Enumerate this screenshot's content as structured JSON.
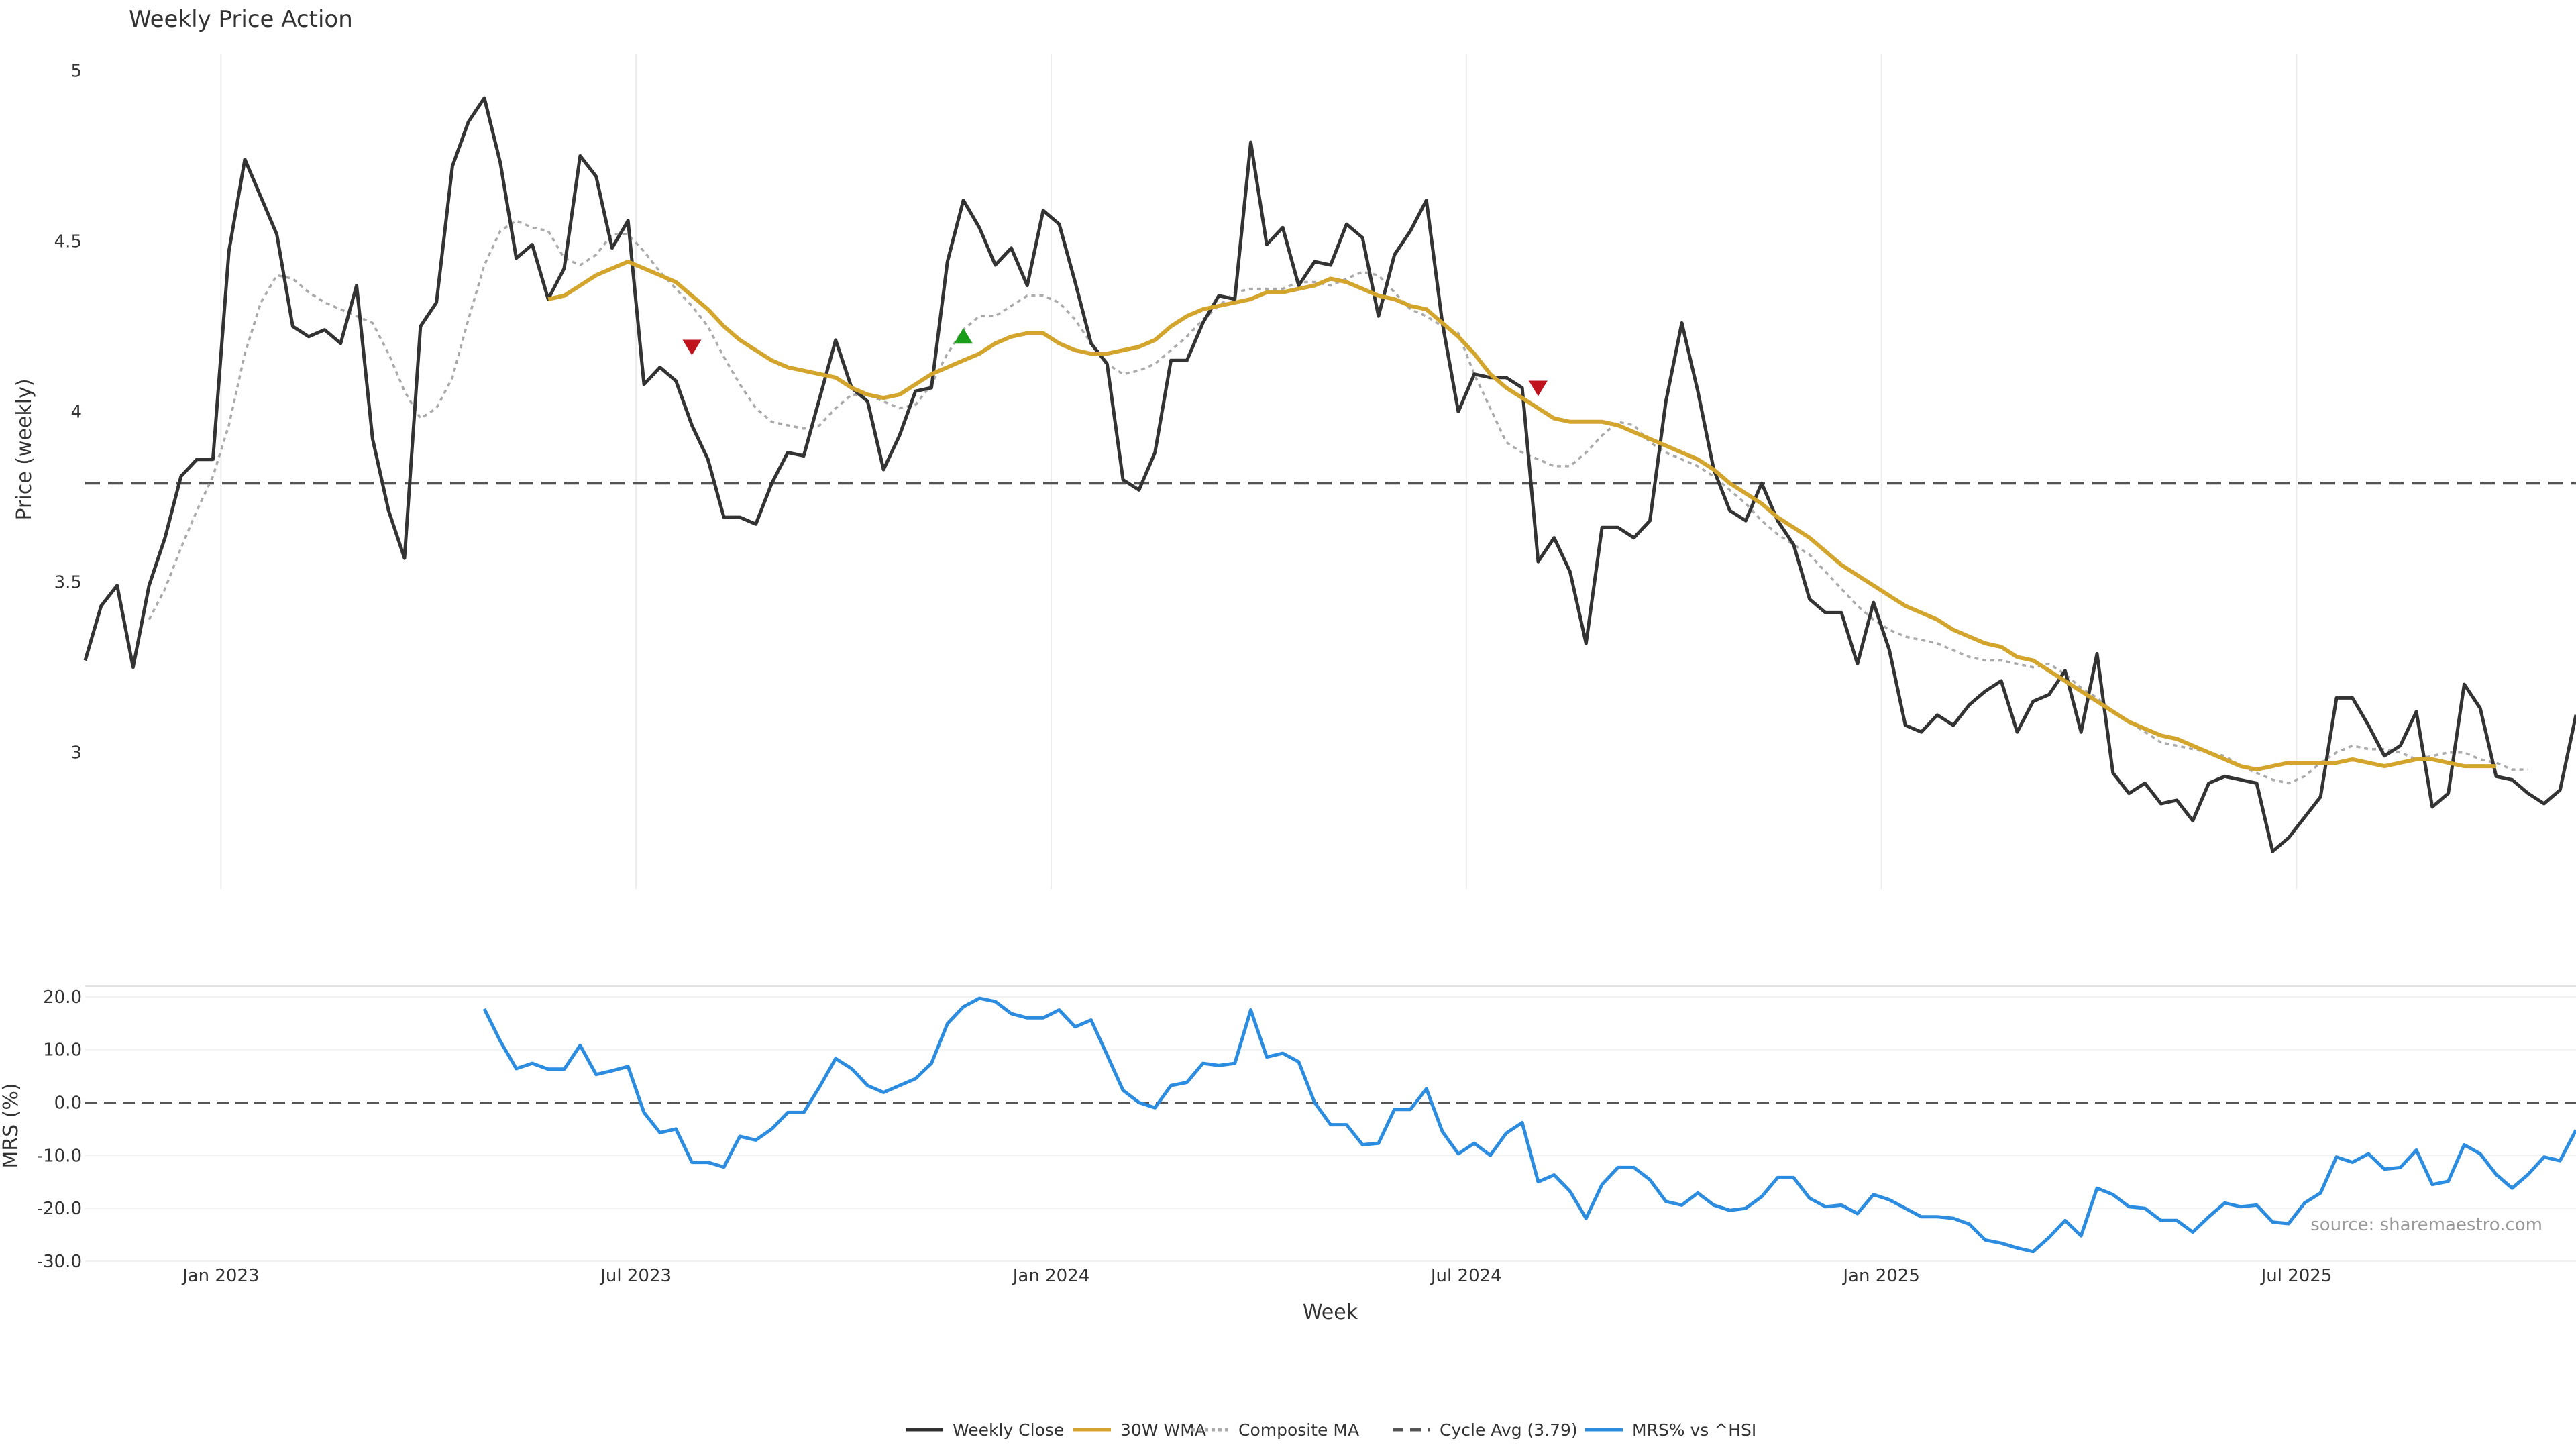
{
  "chart_data": {
    "title": "Weekly Price Action",
    "source": "source: sharemaestro.com",
    "xlabel": "Week",
    "x_ticks": [
      "Jan 2023",
      "Jul 2023",
      "Jan 2024",
      "Jul 2024",
      "Jan 2025",
      "Jul 2025"
    ],
    "price_panel": {
      "type": "line",
      "ylabel": "Price (weekly)",
      "ylim": [
        2.6,
        5.05
      ],
      "y_ticks": [
        "5",
        "4.5",
        "4",
        "3.5",
        "3"
      ],
      "y_tick_values": [
        5,
        4.5,
        4,
        3.5,
        3
      ],
      "grid": "vertical",
      "series": [
        {
          "name": "Weekly Close",
          "color": "#333333",
          "values": [
            3.27,
            3.43,
            3.49,
            3.25,
            3.49,
            3.63,
            3.81,
            3.86,
            3.86,
            4.47,
            4.74,
            4.63,
            4.52,
            4.25,
            4.22,
            4.24,
            4.2,
            4.37,
            3.92,
            3.71,
            3.57,
            4.25,
            4.32,
            4.72,
            4.85,
            4.92,
            4.73,
            4.45,
            4.49,
            4.33,
            4.42,
            4.75,
            4.69,
            4.48,
            4.56,
            4.08,
            4.13,
            4.09,
            3.96,
            3.86,
            3.69,
            3.69,
            3.67,
            3.79,
            3.88,
            3.87,
            4.04,
            4.21,
            4.07,
            4.03,
            3.83,
            3.93,
            4.06,
            4.07,
            4.44,
            4.62,
            4.54,
            4.43,
            4.48,
            4.37,
            4.59,
            4.55,
            4.38,
            4.2,
            4.14,
            3.8,
            3.77,
            3.88,
            4.15,
            4.15,
            4.26,
            4.34,
            4.33,
            4.79,
            4.49,
            4.54,
            4.37,
            4.44,
            4.43,
            4.55,
            4.51,
            4.28,
            4.46,
            4.53,
            4.62,
            4.26,
            4.0,
            4.11,
            4.1,
            4.1,
            4.07,
            3.56,
            3.63,
            3.53,
            3.32,
            3.66,
            3.66,
            3.63,
            3.68,
            4.03,
            4.26,
            4.06,
            3.83,
            3.71,
            3.68,
            3.79,
            3.68,
            3.61,
            3.45,
            3.41,
            3.41,
            3.26,
            3.44,
            3.3,
            3.08,
            3.06,
            3.11,
            3.08,
            3.14,
            3.18,
            3.21,
            3.06,
            3.15,
            3.17,
            3.24,
            3.06,
            3.29,
            2.94,
            2.88,
            2.91,
            2.85,
            2.86,
            2.8,
            2.91,
            2.93,
            2.92,
            2.91,
            2.71,
            2.75,
            2.81,
            2.87,
            3.16,
            3.16,
            3.08,
            2.99,
            3.02,
            3.12,
            2.84,
            2.88,
            3.2,
            3.13,
            2.93,
            2.92,
            2.88,
            2.85,
            2.89,
            3.11
          ]
        },
        {
          "name": "30W WMA",
          "color": "#D4A52C",
          "start_index": 29,
          "values": [
            4.33,
            4.34,
            4.37,
            4.4,
            4.42,
            4.44,
            4.42,
            4.4,
            4.38,
            4.34,
            4.3,
            4.25,
            4.21,
            4.18,
            4.15,
            4.13,
            4.12,
            4.11,
            4.1,
            4.07,
            4.05,
            4.04,
            4.05,
            4.08,
            4.11,
            4.13,
            4.15,
            4.17,
            4.2,
            4.22,
            4.23,
            4.23,
            4.2,
            4.18,
            4.17,
            4.17,
            4.18,
            4.19,
            4.21,
            4.25,
            4.28,
            4.3,
            4.31,
            4.32,
            4.33,
            4.35,
            4.35,
            4.36,
            4.37,
            4.39,
            4.38,
            4.36,
            4.34,
            4.33,
            4.31,
            4.3,
            4.26,
            4.22,
            4.17,
            4.11,
            4.07,
            4.04,
            4.01,
            3.98,
            3.97,
            3.97,
            3.97,
            3.96,
            3.94,
            3.92,
            3.9,
            3.88,
            3.86,
            3.83,
            3.79,
            3.76,
            3.73,
            3.69,
            3.66,
            3.63,
            3.59,
            3.55,
            3.52,
            3.49,
            3.46,
            3.43,
            3.41,
            3.39,
            3.36,
            3.34,
            3.32,
            3.31,
            3.28,
            3.27,
            3.24,
            3.21,
            3.18,
            3.15,
            3.12,
            3.09,
            3.07,
            3.05,
            3.04,
            3.02,
            3.0,
            2.98,
            2.96,
            2.95,
            2.96,
            2.97,
            2.97,
            2.97,
            2.97,
            2.98,
            2.97,
            2.96,
            2.97,
            2.98,
            2.98,
            2.97,
            2.96,
            2.96,
            2.96
          ]
        },
        {
          "name": "Composite MA",
          "color": "#AAAAAA",
          "dashed": true,
          "start_index": 4,
          "values": [
            3.39,
            3.48,
            3.6,
            3.71,
            3.81,
            3.96,
            4.17,
            4.32,
            4.4,
            4.39,
            4.35,
            4.32,
            4.3,
            4.28,
            4.26,
            4.17,
            4.06,
            3.98,
            4.01,
            4.1,
            4.27,
            4.43,
            4.53,
            4.56,
            4.54,
            4.53,
            4.45,
            4.43,
            4.46,
            4.52,
            4.52,
            4.47,
            4.41,
            4.36,
            4.31,
            4.25,
            4.16,
            4.08,
            4.01,
            3.97,
            3.96,
            3.95,
            3.96,
            4.01,
            4.05,
            4.05,
            4.03,
            4.01,
            4.02,
            4.08,
            4.17,
            4.24,
            4.28,
            4.28,
            4.31,
            4.34,
            4.34,
            4.32,
            4.27,
            4.2,
            4.14,
            4.11,
            4.12,
            4.14,
            4.18,
            4.22,
            4.27,
            4.31,
            4.35,
            4.36,
            4.36,
            4.36,
            4.38,
            4.38,
            4.37,
            4.39,
            4.41,
            4.4,
            4.35,
            4.3,
            4.28,
            4.25,
            4.23,
            4.11,
            4.01,
            3.91,
            3.88,
            3.86,
            3.84,
            3.84,
            3.88,
            3.93,
            3.97,
            3.96,
            3.91,
            3.88,
            3.86,
            3.84,
            3.81,
            3.77,
            3.73,
            3.68,
            3.64,
            3.61,
            3.58,
            3.53,
            3.48,
            3.43,
            3.39,
            3.36,
            3.34,
            3.33,
            3.32,
            3.3,
            3.28,
            3.27,
            3.27,
            3.26,
            3.25,
            3.26,
            3.23,
            3.19,
            3.16,
            3.12,
            3.09,
            3.06,
            3.03,
            3.02,
            3.01,
            3.0,
            2.99,
            2.96,
            2.94,
            2.92,
            2.91,
            2.93,
            2.97,
            3.0,
            3.02,
            3.01,
            3.01,
            3.0,
            2.98,
            2.99,
            3.0,
            3.0,
            2.98,
            2.97,
            2.95,
            2.95
          ]
        },
        {
          "name": "Cycle Avg (3.79)",
          "color": "#555555",
          "dashed": true,
          "constant": 3.79
        }
      ],
      "markers": [
        {
          "type": "sell",
          "index": 38,
          "value": 4.19,
          "color": "#C0121C"
        },
        {
          "type": "buy",
          "index": 55,
          "value": 4.22,
          "color": "#1A9E1A"
        },
        {
          "type": "sell",
          "index": 91,
          "value": 4.07,
          "color": "#C0121C"
        }
      ]
    },
    "mrs_panel": {
      "type": "line",
      "ylabel": "MRS (%)",
      "ylim": [
        -30,
        22
      ],
      "y_ticks": [
        "20.0",
        "10.0",
        "0.0",
        "-10.0",
        "-20.0",
        "-30.0"
      ],
      "y_tick_values": [
        20,
        10,
        0,
        -10,
        -20,
        -30
      ],
      "zero_line": true,
      "series": [
        {
          "name": "MRS% vs ^HSI",
          "color": "#2B8CE0",
          "start_index": 25,
          "values": [
            17.7,
            11.6,
            6.4,
            7.4,
            6.3,
            6.3,
            10.8,
            5.3,
            6.0,
            6.8,
            -1.9,
            -5.7,
            -5.0,
            -11.3,
            -11.3,
            -12.2,
            -6.4,
            -7.1,
            -5.0,
            -1.9,
            -1.9,
            3.0,
            8.3,
            6.4,
            3.2,
            1.9,
            3.2,
            4.5,
            7.4,
            14.9,
            18.1,
            19.7,
            19.1,
            16.8,
            16.0,
            16.0,
            17.5,
            14.3,
            15.6,
            9.0,
            2.3,
            0.0,
            -1.0,
            3.2,
            3.8,
            7.4,
            7.0,
            7.4,
            17.5,
            8.6,
            9.3,
            7.7,
            0.0,
            -4.2,
            -4.2,
            -8.0,
            -7.7,
            -1.3,
            -1.3,
            2.6,
            -5.5,
            -9.7,
            -7.7,
            -10.0,
            -5.8,
            -3.8,
            -15.0,
            -13.7,
            -16.8,
            -21.9,
            -15.5,
            -12.3,
            -12.3,
            -14.6,
            -18.7,
            -19.4,
            -17.1,
            -19.4,
            -20.4,
            -20.0,
            -17.8,
            -14.2,
            -14.2,
            -18.1,
            -19.7,
            -19.4,
            -21.0,
            -17.4,
            -18.4,
            -20.0,
            -21.6,
            -21.6,
            -21.9,
            -23.0,
            -26.0,
            -26.6,
            -27.5,
            -28.2,
            -25.5,
            -22.3,
            -25.2,
            -16.2,
            -17.4,
            -19.7,
            -20.0,
            -22.3,
            -22.3,
            -24.5,
            -21.6,
            -19.0,
            -19.7,
            -19.4,
            -22.6,
            -22.9,
            -19.0,
            -17.1,
            -10.3,
            -11.3,
            -9.7,
            -12.6,
            -12.3,
            -9.0,
            -15.5,
            -14.9,
            -8.0,
            -9.7,
            -13.6,
            -16.2,
            -13.6,
            -10.3,
            -11.0,
            -5.2
          ]
        }
      ]
    },
    "legend": {
      "placement": "bottom-center",
      "items": [
        {
          "label": "Weekly Close",
          "color": "#333333",
          "style": "solid"
        },
        {
          "label": "30W WMA",
          "color": "#D4A52C",
          "style": "solid"
        },
        {
          "label": "Composite MA",
          "color": "#AAAAAA",
          "style": "dotted"
        },
        {
          "label": "Cycle Avg (3.79)",
          "color": "#555555",
          "style": "dashed"
        },
        {
          "label": "MRS% vs ^HSI",
          "color": "#2B8CE0",
          "style": "solid"
        }
      ]
    }
  }
}
